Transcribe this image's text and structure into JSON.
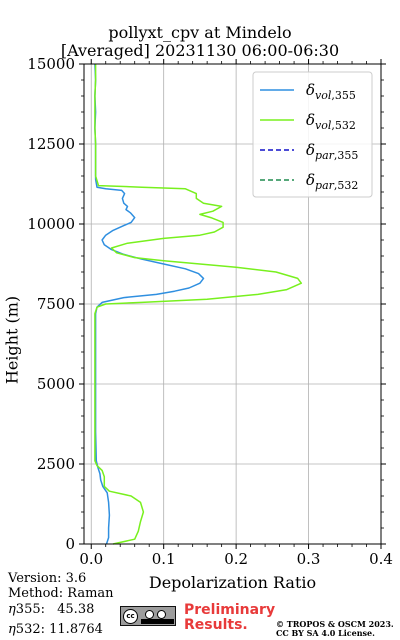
{
  "chart_data": {
    "type": "line",
    "title": "pollyxt_cpv at Mindelo",
    "subtitle": "[Averaged] 20231130 06:00-06:30",
    "xlabel": "Depolarization Ratio",
    "ylabel": "Height (m)",
    "xlim": [
      -0.01,
      0.4
    ],
    "ylim": [
      0,
      15000
    ],
    "xticks": [
      "0.0",
      "0.1",
      "0.2",
      "0.3",
      "0.4"
    ],
    "yticks": [
      "0",
      "2500",
      "5000",
      "7500",
      "10000",
      "12500",
      "15000"
    ],
    "grid": true,
    "legend_position": "top-right",
    "series": [
      {
        "name": "vol,355",
        "color": "#2f8fe0",
        "style": "solid",
        "points": [
          [
            0.021,
            0
          ],
          [
            0.024,
            200
          ],
          [
            0.024,
            500
          ],
          [
            0.025,
            900
          ],
          [
            0.024,
            1300
          ],
          [
            0.022,
            1600
          ],
          [
            0.016,
            1800
          ],
          [
            0.013,
            2000
          ],
          [
            0.012,
            2200
          ],
          [
            0.009,
            2400
          ],
          [
            0.007,
            2600
          ],
          [
            0.006,
            3500
          ],
          [
            0.006,
            4500
          ],
          [
            0.006,
            5500
          ],
          [
            0.006,
            6500
          ],
          [
            0.006,
            7000
          ],
          [
            0.006,
            7200
          ],
          [
            0.008,
            7400
          ],
          [
            0.015,
            7550
          ],
          [
            0.045,
            7700
          ],
          [
            0.09,
            7800
          ],
          [
            0.115,
            7900
          ],
          [
            0.135,
            8000
          ],
          [
            0.15,
            8150
          ],
          [
            0.155,
            8300
          ],
          [
            0.148,
            8450
          ],
          [
            0.13,
            8600
          ],
          [
            0.1,
            8750
          ],
          [
            0.07,
            8900
          ],
          [
            0.045,
            9050
          ],
          [
            0.028,
            9200
          ],
          [
            0.018,
            9350
          ],
          [
            0.015,
            9500
          ],
          [
            0.02,
            9650
          ],
          [
            0.03,
            9800
          ],
          [
            0.045,
            9950
          ],
          [
            0.055,
            10050
          ],
          [
            0.06,
            10200
          ],
          [
            0.054,
            10350
          ],
          [
            0.048,
            10450
          ],
          [
            0.05,
            10550
          ],
          [
            0.045,
            10650
          ],
          [
            0.043,
            10800
          ],
          [
            0.046,
            10950
          ],
          [
            0.042,
            11050
          ],
          [
            0.02,
            11100
          ],
          [
            0.008,
            11150
          ],
          [
            0.006,
            11400
          ],
          [
            0.006,
            12000
          ],
          [
            0.006,
            12500
          ],
          [
            0.005,
            13000
          ],
          [
            0.006,
            13500
          ],
          [
            0.005,
            14000
          ],
          [
            0.006,
            14500
          ],
          [
            0.005,
            15000
          ]
        ]
      },
      {
        "name": "vol,532",
        "color": "#78f01e",
        "style": "solid",
        "points": [
          [
            0.03,
            0
          ],
          [
            0.06,
            150
          ],
          [
            0.065,
            400
          ],
          [
            0.068,
            700
          ],
          [
            0.072,
            1000
          ],
          [
            0.068,
            1300
          ],
          [
            0.055,
            1500
          ],
          [
            0.025,
            1650
          ],
          [
            0.018,
            1800
          ],
          [
            0.018,
            2100
          ],
          [
            0.015,
            2300
          ],
          [
            0.008,
            2450
          ],
          [
            0.005,
            2600
          ],
          [
            0.005,
            3500
          ],
          [
            0.005,
            4500
          ],
          [
            0.005,
            5500
          ],
          [
            0.005,
            6500
          ],
          [
            0.005,
            7000
          ],
          [
            0.005,
            7200
          ],
          [
            0.008,
            7400
          ],
          [
            0.02,
            7500
          ],
          [
            0.07,
            7550
          ],
          [
            0.16,
            7650
          ],
          [
            0.23,
            7800
          ],
          [
            0.27,
            7950
          ],
          [
            0.29,
            8150
          ],
          [
            0.285,
            8300
          ],
          [
            0.255,
            8500
          ],
          [
            0.2,
            8650
          ],
          [
            0.15,
            8750
          ],
          [
            0.1,
            8850
          ],
          [
            0.06,
            8950
          ],
          [
            0.035,
            9100
          ],
          [
            0.028,
            9250
          ],
          [
            0.05,
            9400
          ],
          [
            0.1,
            9550
          ],
          [
            0.15,
            9650
          ],
          [
            0.17,
            9750
          ],
          [
            0.182,
            9900
          ],
          [
            0.182,
            10050
          ],
          [
            0.165,
            10200
          ],
          [
            0.15,
            10300
          ],
          [
            0.168,
            10400
          ],
          [
            0.18,
            10550
          ],
          [
            0.155,
            10650
          ],
          [
            0.145,
            10800
          ],
          [
            0.145,
            10950
          ],
          [
            0.13,
            11100
          ],
          [
            0.07,
            11150
          ],
          [
            0.01,
            11200
          ],
          [
            0.006,
            11500
          ],
          [
            0.006,
            12000
          ],
          [
            0.006,
            12500
          ],
          [
            0.005,
            13000
          ],
          [
            0.005,
            13500
          ],
          [
            0.005,
            14000
          ],
          [
            0.006,
            14500
          ],
          [
            0.006,
            15000
          ]
        ]
      },
      {
        "name": "par,355",
        "color": "#1010c8",
        "style": "dashed",
        "points": []
      },
      {
        "name": "par,532",
        "color": "#1e8c4e",
        "style": "dashed",
        "points": []
      }
    ]
  },
  "info": {
    "version": "Version: 3.6",
    "method": "Method: Raman",
    "eta355_label": "355:",
    "eta355_value": "45.38",
    "eta532_label": "532:",
    "eta532_value": "11.8764"
  },
  "footer": {
    "preliminary_line1": "Preliminary",
    "preliminary_line2": "Results.",
    "copyright_line1": "© TROPOS & OSCM 2023.",
    "copyright_line2": "CC BY SA 4.0 License.",
    "badge_text": "cc"
  }
}
